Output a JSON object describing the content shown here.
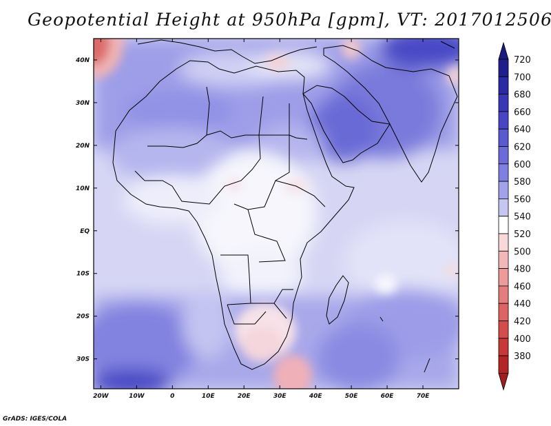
{
  "title": "Geopotential Height at 950hPa [gpm], VT: 2017012506",
  "credit": "GrADS: IGES/COLA",
  "map": {
    "variable": "Geopotential Height",
    "level": "950hPa",
    "units": "gpm",
    "valid_time": "2017012506",
    "lon_range": [
      -22,
      80
    ],
    "lat_range": [
      -37,
      45
    ],
    "lon_ticks": [
      {
        "value": -20,
        "label": "20W"
      },
      {
        "value": -10,
        "label": "10W"
      },
      {
        "value": 0,
        "label": "0"
      },
      {
        "value": 10,
        "label": "10E"
      },
      {
        "value": 20,
        "label": "20E"
      },
      {
        "value": 30,
        "label": "30E"
      },
      {
        "value": 40,
        "label": "40E"
      },
      {
        "value": 50,
        "label": "50E"
      },
      {
        "value": 60,
        "label": "60E"
      },
      {
        "value": 70,
        "label": "70E"
      }
    ],
    "lat_ticks": [
      {
        "value": 40,
        "label": "40N"
      },
      {
        "value": 30,
        "label": "30N"
      },
      {
        "value": 20,
        "label": "20N"
      },
      {
        "value": 10,
        "label": "10N"
      },
      {
        "value": 0,
        "label": "EQ"
      },
      {
        "value": -10,
        "label": "10S"
      },
      {
        "value": -20,
        "label": "20S"
      },
      {
        "value": -30,
        "label": "30S"
      }
    ]
  },
  "colorbar": {
    "levels": [
      {
        "label": "720",
        "color": "#1e1e8c"
      },
      {
        "label": "700",
        "color": "#2a2aa4"
      },
      {
        "label": "680",
        "color": "#3737b8"
      },
      {
        "label": "660",
        "color": "#4747c6"
      },
      {
        "label": "640",
        "color": "#5a5ad0"
      },
      {
        "label": "620",
        "color": "#6c6cd8"
      },
      {
        "label": "600",
        "color": "#8080e0"
      },
      {
        "label": "580",
        "color": "#a2a2ea"
      },
      {
        "label": "560",
        "color": "#c6c6f2"
      },
      {
        "label": "540",
        "color": "#ffffff"
      },
      {
        "label": "520",
        "color": "#f8d8d8"
      },
      {
        "label": "500",
        "color": "#f2b8b8"
      },
      {
        "label": "480",
        "color": "#ec9a9a"
      },
      {
        "label": "460",
        "color": "#e47e7e"
      },
      {
        "label": "440",
        "color": "#dc6464"
      },
      {
        "label": "420",
        "color": "#d44c4c"
      },
      {
        "label": "400",
        "color": "#c83838"
      },
      {
        "label": "380",
        "color": "#b42626"
      }
    ],
    "top_arrow_color": "#1a1a80",
    "bottom_arrow_color": "#a01e1e"
  }
}
